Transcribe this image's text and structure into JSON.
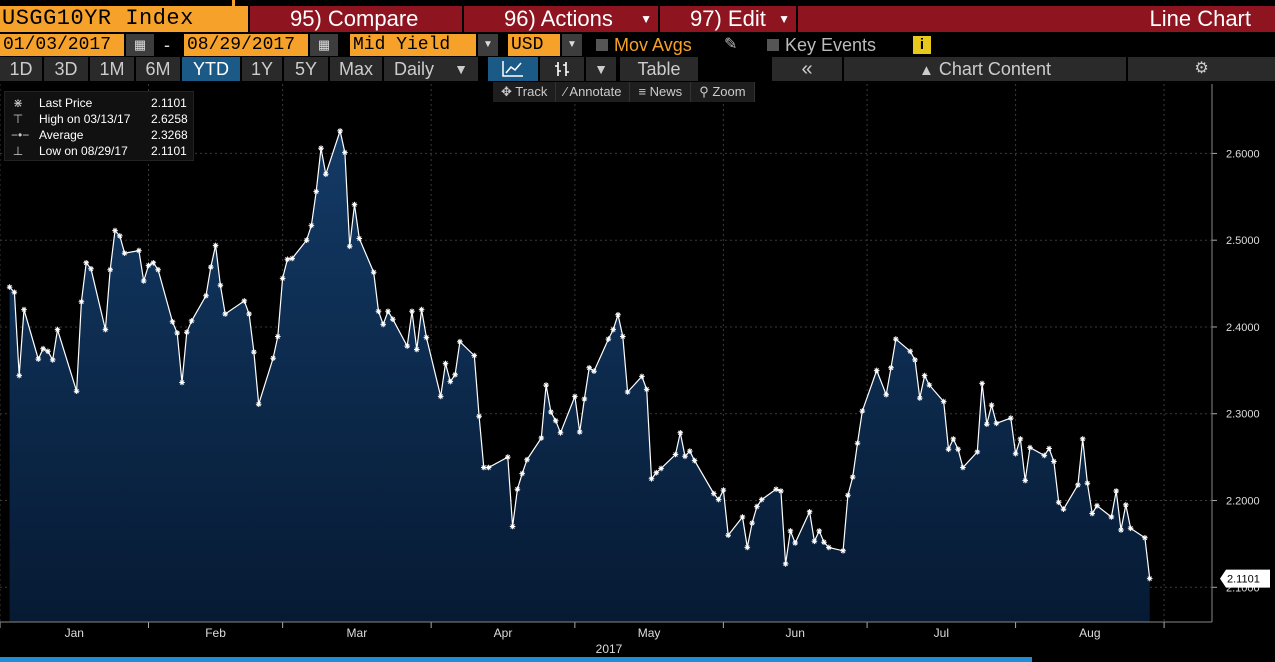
{
  "header": {
    "ticker": "USGG10YR Index",
    "compare_label": "95) Compare",
    "actions_label": "96) Actions",
    "edit_label": "97) Edit",
    "view_label": "Line Chart"
  },
  "controls": {
    "start_date": "01/03/2017",
    "date_separator": "-",
    "end_date": "08/29/2017",
    "field": "Mid Yield",
    "currency": "USD",
    "mov_avgs_label": "Mov Avgs",
    "key_events_label": "Key Events",
    "info_label": "i"
  },
  "toolbar": {
    "ranges": [
      "1D",
      "3D",
      "1M",
      "6M",
      "YTD",
      "1Y",
      "5Y",
      "Max"
    ],
    "active_range": "YTD",
    "frequency": "Daily",
    "table_label": "Table",
    "chart_content_label": "Chart Content"
  },
  "subtools": {
    "track": "Track",
    "annotate": "Annotate",
    "news": "News",
    "zoom": "Zoom"
  },
  "legend": {
    "rows": [
      {
        "name": "Last Price",
        "value": "2.1101"
      },
      {
        "name": "High on 03/13/17",
        "value": "2.6258"
      },
      {
        "name": "Average",
        "value": "2.3268"
      },
      {
        "name": "Low on 08/29/17",
        "value": "2.1101"
      }
    ]
  },
  "colors": {
    "accent_orange": "#f6a22a",
    "header_red": "#8e1420",
    "active_blue": "#1b5a86",
    "area_top": "#133a66",
    "area_bottom": "#061a33",
    "line": "#ffffff"
  },
  "chart_data": {
    "type": "area",
    "year_label": "2017",
    "last_value_label": "2.1101",
    "x_tick_labels": [
      "Jan",
      "Feb",
      "Mar",
      "Apr",
      "May",
      "Jun",
      "Jul",
      "Aug"
    ],
    "y_tick_labels": [
      "2.1000",
      "2.2000",
      "2.3000",
      "2.4000",
      "2.5000",
      "2.6000"
    ],
    "y_ticks": [
      2.1,
      2.2,
      2.3,
      2.4,
      2.5,
      2.6
    ],
    "ylim": [
      2.06,
      2.68
    ],
    "grid": true,
    "y_axis_side": "right",
    "x": [
      "2017-01-03",
      "2017-01-04",
      "2017-01-05",
      "2017-01-06",
      "2017-01-09",
      "2017-01-10",
      "2017-01-11",
      "2017-01-12",
      "2017-01-13",
      "2017-01-17",
      "2017-01-18",
      "2017-01-19",
      "2017-01-20",
      "2017-01-23",
      "2017-01-24",
      "2017-01-25",
      "2017-01-26",
      "2017-01-27",
      "2017-01-30",
      "2017-01-31",
      "2017-02-01",
      "2017-02-02",
      "2017-02-03",
      "2017-02-06",
      "2017-02-07",
      "2017-02-08",
      "2017-02-09",
      "2017-02-10",
      "2017-02-13",
      "2017-02-14",
      "2017-02-15",
      "2017-02-16",
      "2017-02-17",
      "2017-02-21",
      "2017-02-22",
      "2017-02-23",
      "2017-02-24",
      "2017-02-27",
      "2017-02-28",
      "2017-03-01",
      "2017-03-02",
      "2017-03-03",
      "2017-03-06",
      "2017-03-07",
      "2017-03-08",
      "2017-03-09",
      "2017-03-10",
      "2017-03-13",
      "2017-03-14",
      "2017-03-15",
      "2017-03-16",
      "2017-03-17",
      "2017-03-20",
      "2017-03-21",
      "2017-03-22",
      "2017-03-23",
      "2017-03-24",
      "2017-03-27",
      "2017-03-28",
      "2017-03-29",
      "2017-03-30",
      "2017-03-31",
      "2017-04-03",
      "2017-04-04",
      "2017-04-05",
      "2017-04-06",
      "2017-04-07",
      "2017-04-10",
      "2017-04-11",
      "2017-04-12",
      "2017-04-13",
      "2017-04-17",
      "2017-04-18",
      "2017-04-19",
      "2017-04-20",
      "2017-04-21",
      "2017-04-24",
      "2017-04-25",
      "2017-04-26",
      "2017-04-27",
      "2017-04-28",
      "2017-05-01",
      "2017-05-02",
      "2017-05-03",
      "2017-05-04",
      "2017-05-05",
      "2017-05-08",
      "2017-05-09",
      "2017-05-10",
      "2017-05-11",
      "2017-05-12",
      "2017-05-15",
      "2017-05-16",
      "2017-05-17",
      "2017-05-18",
      "2017-05-19",
      "2017-05-22",
      "2017-05-23",
      "2017-05-24",
      "2017-05-25",
      "2017-05-26",
      "2017-05-30",
      "2017-05-31",
      "2017-06-01",
      "2017-06-02",
      "2017-06-05",
      "2017-06-06",
      "2017-06-07",
      "2017-06-08",
      "2017-06-09",
      "2017-06-12",
      "2017-06-13",
      "2017-06-14",
      "2017-06-15",
      "2017-06-16",
      "2017-06-19",
      "2017-06-20",
      "2017-06-21",
      "2017-06-22",
      "2017-06-23",
      "2017-06-26",
      "2017-06-27",
      "2017-06-28",
      "2017-06-29",
      "2017-06-30",
      "2017-07-03",
      "2017-07-05",
      "2017-07-06",
      "2017-07-07",
      "2017-07-10",
      "2017-07-11",
      "2017-07-12",
      "2017-07-13",
      "2017-07-14",
      "2017-07-17",
      "2017-07-18",
      "2017-07-19",
      "2017-07-20",
      "2017-07-21",
      "2017-07-24",
      "2017-07-25",
      "2017-07-26",
      "2017-07-27",
      "2017-07-28",
      "2017-07-31",
      "2017-08-01",
      "2017-08-02",
      "2017-08-03",
      "2017-08-04",
      "2017-08-07",
      "2017-08-08",
      "2017-08-09",
      "2017-08-10",
      "2017-08-11",
      "2017-08-14",
      "2017-08-15",
      "2017-08-16",
      "2017-08-17",
      "2017-08-18",
      "2017-08-21",
      "2017-08-22",
      "2017-08-23",
      "2017-08-24",
      "2017-08-25",
      "2017-08-28",
      "2017-08-29"
    ],
    "series": [
      {
        "values": [
          2.446,
          2.44,
          2.344,
          2.42,
          2.363,
          2.375,
          2.372,
          2.362,
          2.397,
          2.326,
          2.429,
          2.474,
          2.467,
          2.397,
          2.466,
          2.511,
          2.505,
          2.485,
          2.488,
          2.453,
          2.471,
          2.474,
          2.466,
          2.406,
          2.393,
          2.336,
          2.394,
          2.407,
          2.436,
          2.469,
          2.494,
          2.448,
          2.415,
          2.43,
          2.415,
          2.371,
          2.311,
          2.364,
          2.389,
          2.456,
          2.478,
          2.479,
          2.5,
          2.517,
          2.556,
          2.606,
          2.576,
          2.626,
          2.601,
          2.493,
          2.541,
          2.502,
          2.463,
          2.418,
          2.403,
          2.418,
          2.409,
          2.378,
          2.418,
          2.374,
          2.42,
          2.388,
          2.32,
          2.358,
          2.337,
          2.345,
          2.383,
          2.367,
          2.297,
          2.238,
          2.238,
          2.25,
          2.17,
          2.213,
          2.231,
          2.247,
          2.272,
          2.333,
          2.302,
          2.292,
          2.278,
          2.32,
          2.279,
          2.317,
          2.353,
          2.349,
          2.386,
          2.397,
          2.414,
          2.389,
          2.325,
          2.343,
          2.328,
          2.225,
          2.232,
          2.237,
          2.253,
          2.278,
          2.251,
          2.257,
          2.246,
          2.208,
          2.201,
          2.212,
          2.16,
          2.181,
          2.146,
          2.174,
          2.193,
          2.201,
          2.213,
          2.211,
          2.127,
          2.165,
          2.151,
          2.187,
          2.153,
          2.165,
          2.152,
          2.146,
          2.142,
          2.206,
          2.227,
          2.266,
          2.303,
          2.35,
          2.322,
          2.353,
          2.386,
          2.372,
          2.362,
          2.318,
          2.344,
          2.333,
          2.314,
          2.259,
          2.271,
          2.259,
          2.238,
          2.256,
          2.335,
          2.288,
          2.31,
          2.289,
          2.295,
          2.254,
          2.271,
          2.223,
          2.261,
          2.252,
          2.26,
          2.245,
          2.198,
          2.19,
          2.218,
          2.271,
          2.22,
          2.185,
          2.194,
          2.181,
          2.211,
          2.166,
          2.195,
          2.168,
          2.157,
          2.11
        ]
      }
    ]
  }
}
